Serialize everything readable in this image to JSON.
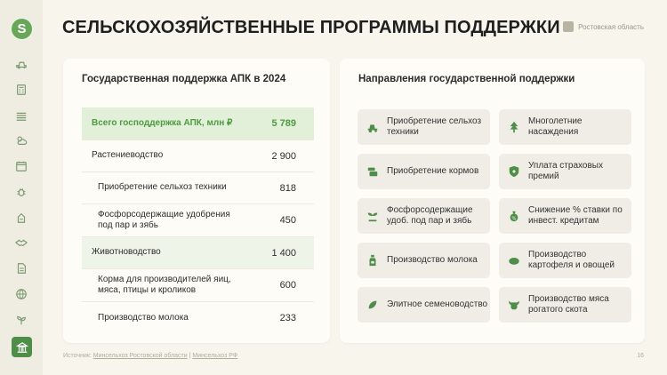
{
  "header": {
    "logo": "S",
    "title": "СЕЛЬСКОХОЗЯЙСТВЕННЫЕ ПРОГРАММЫ ПОДДЕРЖКИ",
    "region": "Ростовская область"
  },
  "sidebar": {
    "items": [
      {
        "icon": "tractor-icon"
      },
      {
        "icon": "calculator-icon"
      },
      {
        "icon": "field-icon"
      },
      {
        "icon": "weather-icon"
      },
      {
        "icon": "calendar-icon"
      },
      {
        "icon": "bug-icon"
      },
      {
        "icon": "fertilizer-icon"
      },
      {
        "icon": "handshake-icon"
      },
      {
        "icon": "document-icon"
      },
      {
        "icon": "globe-icon"
      },
      {
        "icon": "seedling-icon"
      },
      {
        "icon": "bank-icon",
        "active": true
      }
    ]
  },
  "left_card": {
    "title": "Государственная поддержка АПК в 2024",
    "rows": [
      {
        "label": "Всего господдержка АПК, млн ₽",
        "value": "5 789"
      },
      {
        "label": "Растениеводство",
        "value": "2 900"
      },
      {
        "label": "Приобретение сельхоз техники",
        "value": "818"
      },
      {
        "label": "Фосфорсодержащие удобрения под пар и зябь",
        "value": "450"
      },
      {
        "label": "Животноводство",
        "value": "1 400"
      },
      {
        "label": "Корма для производителей яиц, мяса, птицы и кроликов",
        "value": "600"
      },
      {
        "label": "Производство молока",
        "value": "233"
      }
    ]
  },
  "right_card": {
    "title": "Направления государственной поддержки",
    "tiles": [
      {
        "label": "Приобретение сельхоз техники",
        "icon": "tractor-icon"
      },
      {
        "label": "Многолетние насаждения",
        "icon": "tree-icon"
      },
      {
        "label": "Приобретение кормов",
        "icon": "feed-icon"
      },
      {
        "label": "Уплата страховых премий",
        "icon": "shield-icon"
      },
      {
        "label": "Фосфорсодержащие удоб. под пар и зябь",
        "icon": "sprout-icon"
      },
      {
        "label": "Снижение % ставки по инвест. кредитам",
        "icon": "money-bag-icon"
      },
      {
        "label": "Производство молока",
        "icon": "milk-bottle-icon"
      },
      {
        "label": "Производство картофеля и овощей",
        "icon": "potato-icon"
      },
      {
        "label": "Элитное семеноводство",
        "icon": "seed-icon"
      },
      {
        "label": "Производство мяса рогатого скота",
        "icon": "cow-icon"
      }
    ]
  },
  "footer": {
    "source_prefix": "Источник:",
    "source_link_1": "Минсельхоз Ростовской области",
    "separator": "|",
    "source_link_2": "Минсельхоз РФ",
    "page_number": "16"
  },
  "colors": {
    "accent": "#4f8e48",
    "total_text": "#4d9a3f",
    "background": "#f7f5ec"
  }
}
